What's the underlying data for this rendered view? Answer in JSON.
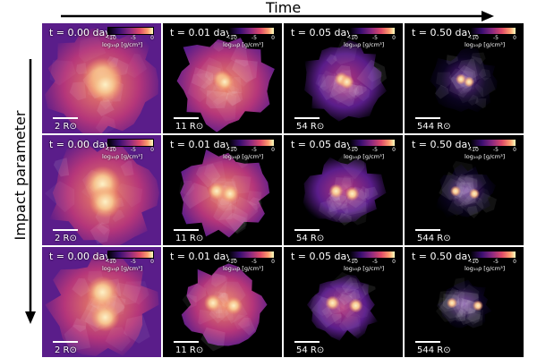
{
  "axes": {
    "time_label": "Time",
    "impact_label": "Impact parameter"
  },
  "colorbar": {
    "ticks": [
      "-10",
      "-5",
      "0"
    ],
    "unit": "log₁₀ρ [g/cm³]"
  },
  "colors": {
    "dark": "#0b0420",
    "purple": "#5a1d8a",
    "magenta": "#b5367a",
    "orange": "#f08a62",
    "peach": "#f6c38f",
    "pale": "#fdf1c6"
  },
  "rows": [
    {
      "panels": [
        {
          "time": "t = 0.00 days",
          "scale": "2 R⊙",
          "stage": 0
        },
        {
          "time": "t = 0.01 days",
          "scale": "11 R⊙",
          "stage": 1
        },
        {
          "time": "t = 0.05 days",
          "scale": "54 R⊙",
          "stage": 2
        },
        {
          "time": "t = 0.50 days",
          "scale": "544 R⊙",
          "stage": 3
        }
      ]
    },
    {
      "panels": [
        {
          "time": "t = 0.00 days",
          "scale": "2 R⊙",
          "stage": 0
        },
        {
          "time": "t = 0.01 days",
          "scale": "11 R⊙",
          "stage": 1
        },
        {
          "time": "t = 0.05 days",
          "scale": "54 R⊙",
          "stage": 2
        },
        {
          "time": "t = 0.50 days",
          "scale": "544 R⊙",
          "stage": 3
        }
      ]
    },
    {
      "panels": [
        {
          "time": "t = 0.00 days",
          "scale": "2 R⊙",
          "stage": 0
        },
        {
          "time": "t = 0.01 days",
          "scale": "11 R⊙",
          "stage": 1
        },
        {
          "time": "t = 0.05 days",
          "scale": "54 R⊙",
          "stage": 2
        },
        {
          "time": "t = 0.50 days",
          "scale": "544 R⊙",
          "stage": 3
        }
      ]
    }
  ]
}
